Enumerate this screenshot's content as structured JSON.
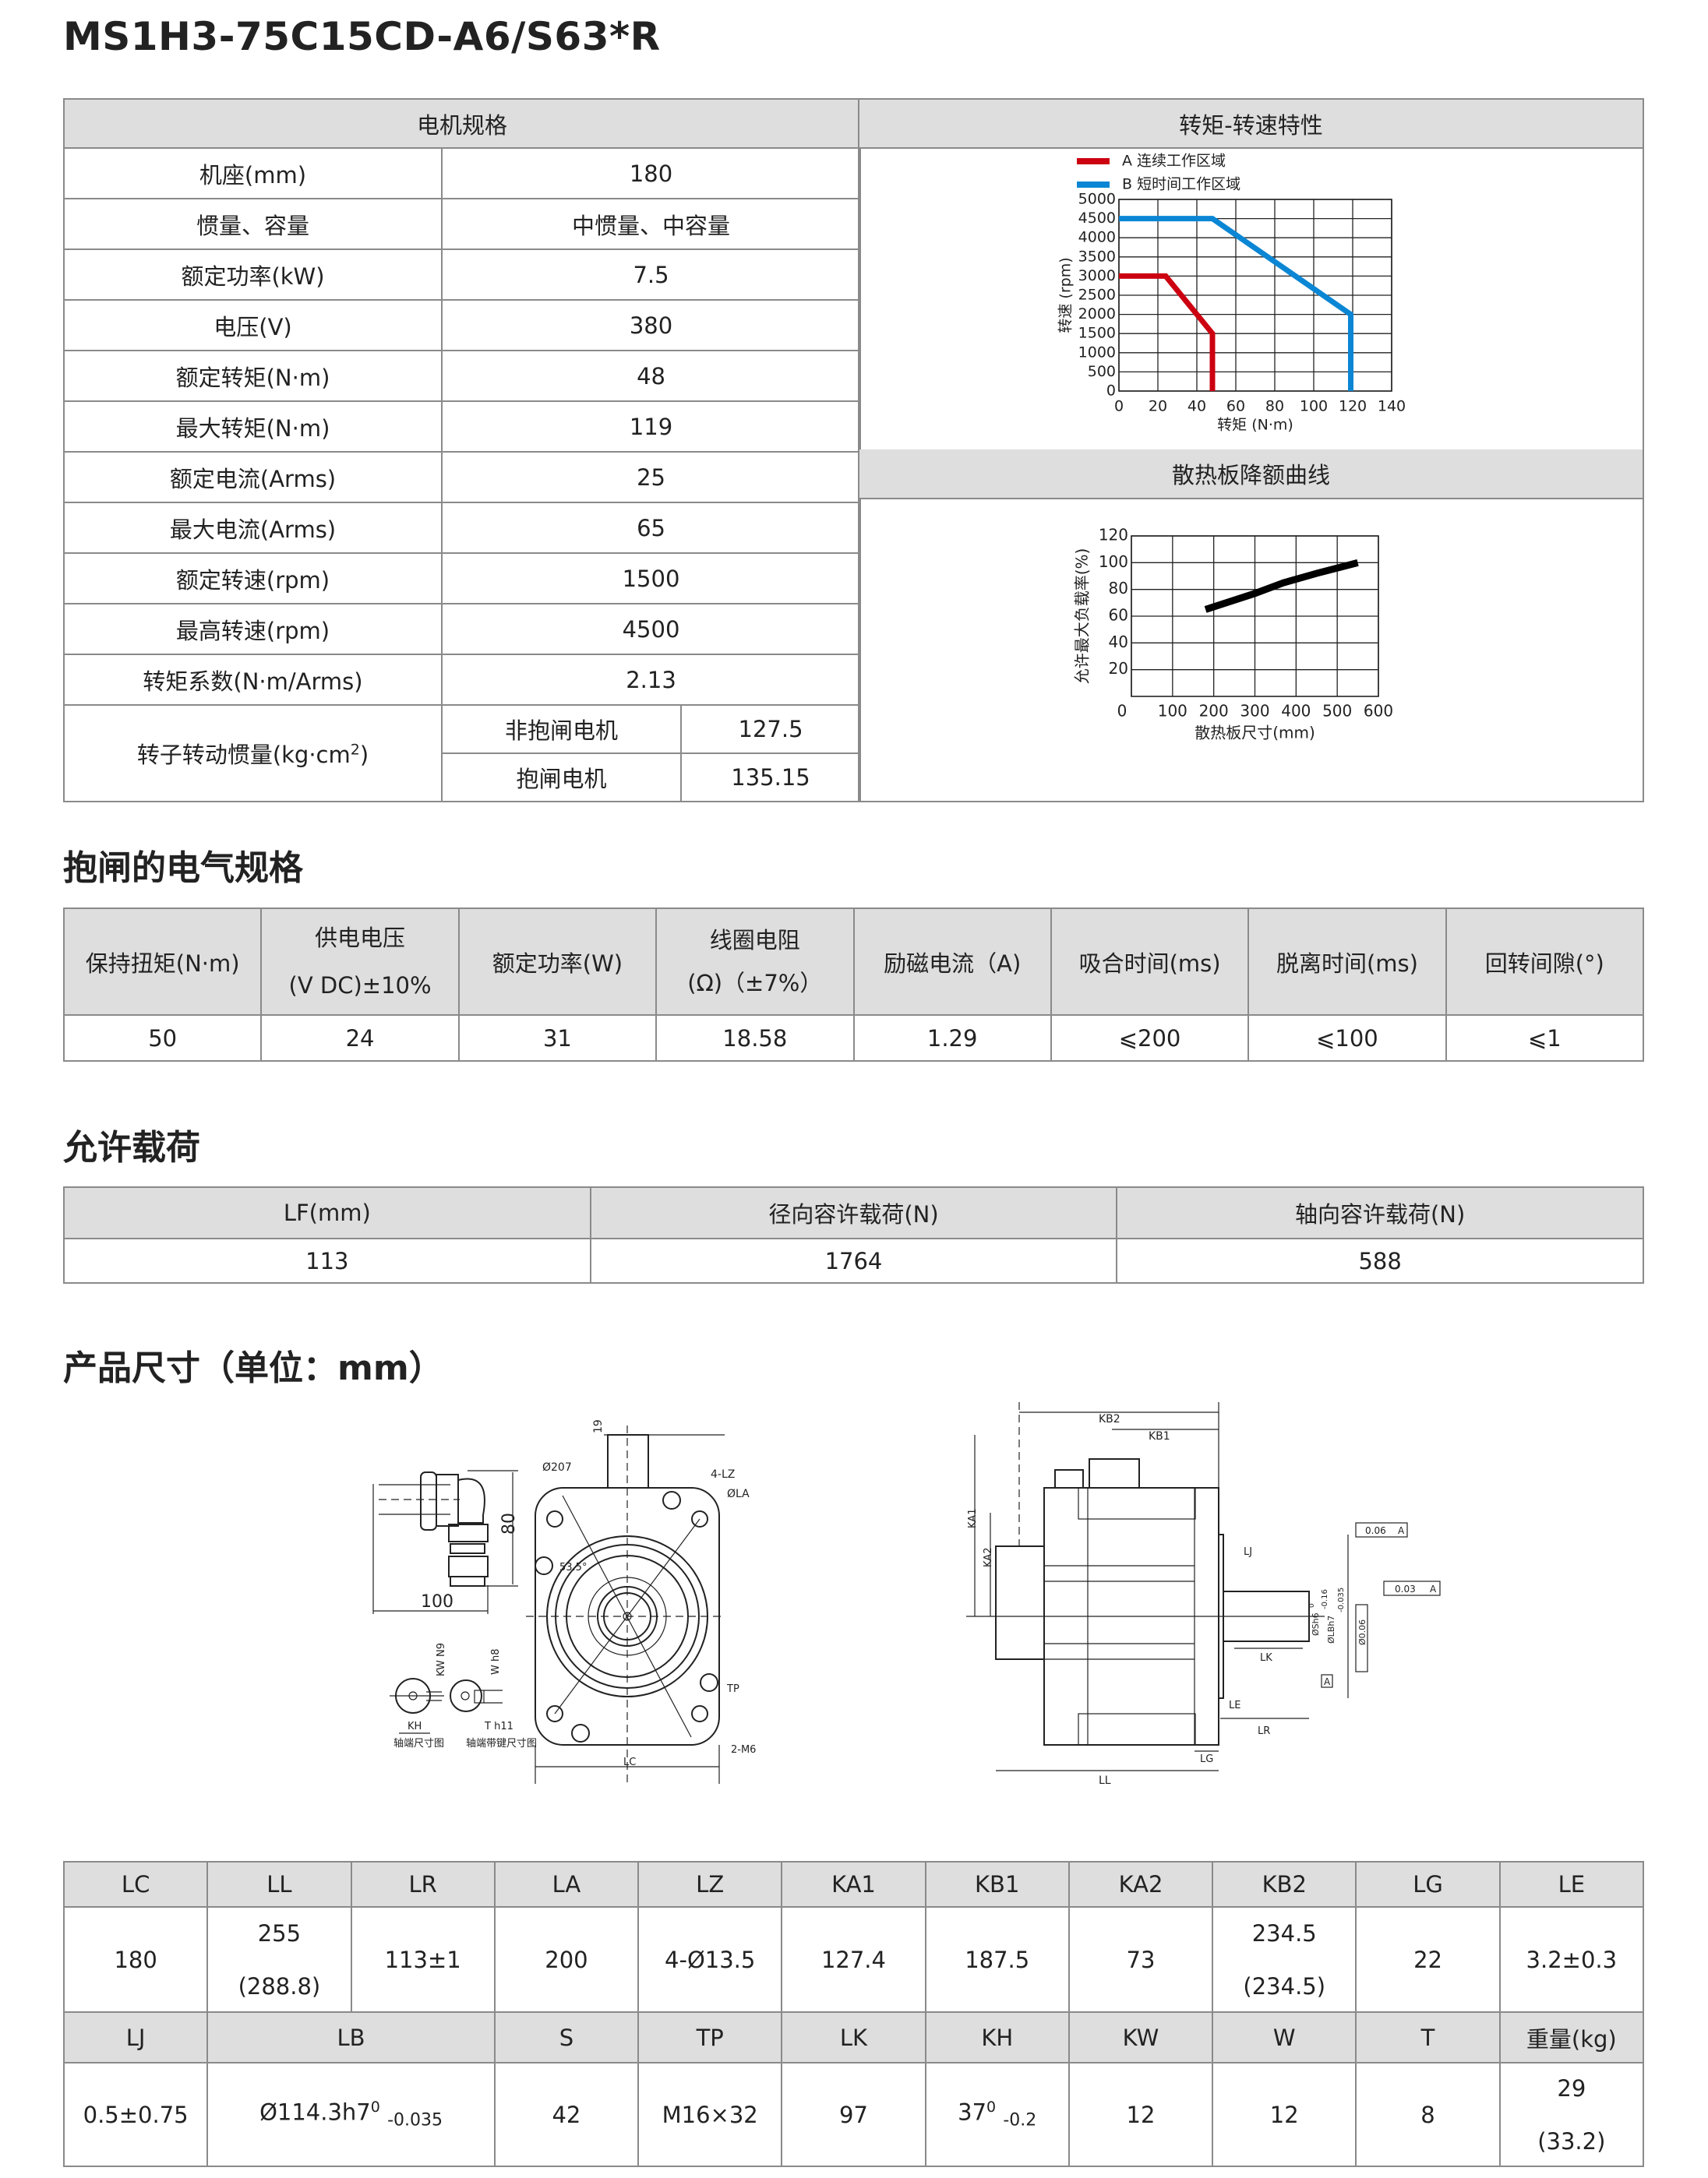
{
  "title": "MS1H3-75C15CD-A6/S63*R",
  "spec": {
    "header": "电机规格",
    "rows": [
      {
        "label": "机座(mm)",
        "value": "180"
      },
      {
        "label": "惯量、容量",
        "value": "中惯量、中容量"
      },
      {
        "label": "额定功率(kW)",
        "value": "7.5"
      },
      {
        "label": "电压(V)",
        "value": "380"
      },
      {
        "label": "额定转矩(N·m)",
        "value": "48"
      },
      {
        "label": "最大转矩(N·m)",
        "value": "119"
      },
      {
        "label": "额定电流(Arms)",
        "value": "25"
      },
      {
        "label": "最大电流(Arms)",
        "value": "65"
      },
      {
        "label": "额定转速(rpm)",
        "value": "1500"
      },
      {
        "label": "最高转速(rpm)",
        "value": "4500"
      },
      {
        "label": "转矩系数(N·m/Arms)",
        "value": "2.13"
      }
    ],
    "inertia": {
      "label": "转子转动惯量(kg·cm",
      "label_sup": "2",
      "label_end": ")",
      "sub": [
        {
          "label": "非抱闸电机",
          "value": "127.5"
        },
        {
          "label": "抱闸电机",
          "value": "135.15"
        }
      ]
    }
  },
  "panels": {
    "torque_speed_header": "转矩-转速特性",
    "derating_header": "散热板降额曲线"
  },
  "chart_data": [
    {
      "type": "line",
      "title": "",
      "xlabel": "转矩 (N·m)",
      "ylabel": "转速 (rpm)",
      "xlim": [
        0,
        140
      ],
      "ylim": [
        0,
        5000
      ],
      "xticks": [
        0,
        20,
        40,
        60,
        80,
        100,
        120,
        140
      ],
      "yticks": [
        0,
        500,
        1000,
        1500,
        2000,
        2500,
        3000,
        3500,
        4000,
        4500,
        5000
      ],
      "grid": true,
      "legend": "top-left",
      "series": [
        {
          "name": "A 连续工作区域",
          "color": "#cc0010",
          "x": [
            0,
            24,
            48,
            48
          ],
          "y": [
            3000,
            3000,
            1500,
            0
          ]
        },
        {
          "name": "B 短时间工作区域",
          "color": "#0a86d4",
          "x": [
            0,
            48,
            119,
            119
          ],
          "y": [
            4500,
            4500,
            2000,
            0
          ]
        }
      ]
    },
    {
      "type": "line",
      "title": "",
      "xlabel": "散热板尺寸(mm)",
      "ylabel": "允许最大负载率(%)",
      "xlim": [
        0,
        600
      ],
      "ylim": [
        0,
        120
      ],
      "xticks": [
        0,
        100,
        200,
        300,
        400,
        500,
        600
      ],
      "yticks": [
        20,
        40,
        60,
        80,
        100,
        120
      ],
      "grid": true,
      "series": [
        {
          "color": "#000000",
          "x": [
            180,
            300,
            370,
            450,
            550
          ],
          "y": [
            65,
            77,
            85,
            92,
            100
          ]
        }
      ]
    }
  ],
  "brake": {
    "title": "抱闸的电气规格",
    "headers": [
      {
        "l1": "保持扭矩(N·m)"
      },
      {
        "l1": "供电电压",
        "l2": "(V DC)±10%"
      },
      {
        "l1": "额定功率(W)"
      },
      {
        "l1": "线圈电阻",
        "l2": "(Ω)（±7%）"
      },
      {
        "l1": "励磁电流（A)"
      },
      {
        "l1": "吸合时间(ms)"
      },
      {
        "l1": "脱离时间(ms)"
      },
      {
        "l1": "回转间隙(°)"
      }
    ],
    "values": [
      "50",
      "24",
      "31",
      "18.58",
      "1.29",
      "⩽200",
      "⩽100",
      "⩽1"
    ]
  },
  "load": {
    "title": "允许载荷",
    "headers": [
      "LF(mm)",
      "径向容许载荷(N)",
      "轴向容许载荷(N)"
    ],
    "values": [
      "113",
      "1764",
      "588"
    ]
  },
  "dims": {
    "title": "产品尺寸（单位：mm）",
    "drawing": {
      "connector_height": "80",
      "connector_length": "100",
      "dim_19": "19",
      "phi207": "Ø207",
      "lz": "4-LZ",
      "la": "ØLA",
      "angle": "53.5°",
      "tp": "TP",
      "m6": "2-M6",
      "lc": "LC",
      "kh": "KH",
      "kw": "KW N9",
      "w": "W h8",
      "t": "T h11",
      "shaft_end": "轴端尺寸图",
      "shaft_key": "轴端带键尺寸图",
      "kb2": "KB2",
      "kb1": "KB1",
      "ka1": "KA1",
      "ka2": "KA2",
      "perp_tol": "0.06",
      "runout_tol": "0.03",
      "conc_tol": "Ø0.06",
      "datum": "A",
      "lj": "LJ",
      "lk": "LK",
      "le": "LE",
      "lr": "LR",
      "lg": "LG",
      "ll": "LL",
      "s": "ØSh6",
      "s_tol": "-0.16",
      "lb": "ØLBh7",
      "lb_tol": "-0.035",
      "zero": "0"
    },
    "row1_headers": [
      "LC",
      "LL",
      "LR",
      "LA",
      "LZ",
      "KA1",
      "KB1",
      "KA2",
      "KB2",
      "LG",
      "LE"
    ],
    "row1_values": [
      {
        "v": "180"
      },
      {
        "v": "255",
        "v2": "(288.8)"
      },
      {
        "v": "113±1"
      },
      {
        "v": "200"
      },
      {
        "v": "4-Ø13.5"
      },
      {
        "v": "127.4"
      },
      {
        "v": "187.5"
      },
      {
        "v": "73"
      },
      {
        "v": "234.5",
        "v2": "(234.5)"
      },
      {
        "v": "22"
      },
      {
        "v": "3.2±0.3"
      }
    ],
    "row2_headers": [
      "LJ",
      "LB",
      "S",
      "TP",
      "LK",
      "KH",
      "KW",
      "W",
      "T",
      "重量(kg)"
    ],
    "row2_values": {
      "lj": "0.5±0.75",
      "lb": {
        "main": "Ø114.3h7",
        "sup": "0",
        "sub": "-0.035"
      },
      "s": "42",
      "tp": "M16×32",
      "lk": "97",
      "kh": {
        "main": "37",
        "sup": "0",
        "sub": "-0.2"
      },
      "kw": "12",
      "w": "12",
      "t": "8",
      "weight": {
        "v": "29",
        "v2": "(33.2)"
      }
    }
  }
}
